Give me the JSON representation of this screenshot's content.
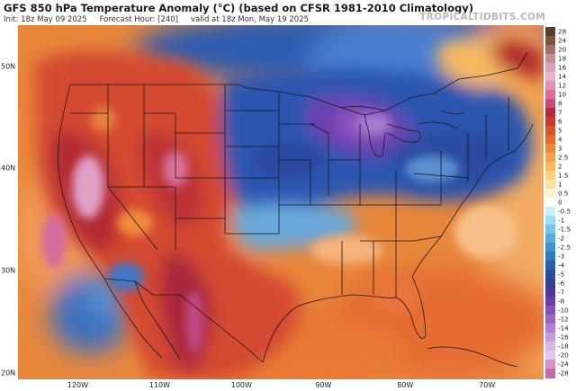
{
  "header": {
    "title": "GFS 850 hPa Temperature Anomaly (°C) (based on CFSR 1981-2010 Climatology)",
    "init": "Init: 18z May 09 2025",
    "forecast_hour": "Forecast Hour: [240]",
    "valid": "valid at 18z Mon, May 19 2025",
    "brand": "TROPICALTIDBITS.COM"
  },
  "axes": {
    "latitudes": [
      {
        "label": "50N",
        "lat": 50
      },
      {
        "label": "40N",
        "lat": 40
      },
      {
        "label": "30N",
        "lat": 30
      },
      {
        "label": "20N",
        "lat": 20
      }
    ],
    "longitudes": [
      {
        "label": "120W",
        "lon": -120
      },
      {
        "label": "110W",
        "lon": -110
      },
      {
        "label": "100W",
        "lon": -100
      },
      {
        "label": "90W",
        "lon": -90
      },
      {
        "label": "80W",
        "lon": -80
      },
      {
        "label": "70W",
        "lon": -70
      }
    ]
  },
  "colorbar": {
    "labels": [
      "28",
      "24",
      "20",
      "18",
      "16",
      "14",
      "12",
      "10",
      "8",
      "7",
      "6",
      "5",
      "4",
      "3",
      "2.5",
      "2",
      "1.5",
      "1",
      "0.5",
      "0",
      "-0.5",
      "-1",
      "-1.5",
      "-2",
      "-2.5",
      "-3",
      "-4",
      "-5",
      "-6",
      "-7",
      "-8",
      "-10",
      "-12",
      "-14",
      "-16",
      "-18",
      "-20",
      "-24",
      "-28"
    ],
    "colors": [
      "#5c3c2c",
      "#7d5540",
      "#a07060",
      "#c9909a",
      "#dca3bb",
      "#e7b3cc",
      "#e68fb4",
      "#d96c98",
      "#c94a72",
      "#b42a3e",
      "#c83a2f",
      "#d9522b",
      "#e56a2f",
      "#ef8838",
      "#f5a24a",
      "#f8b862",
      "#fbce80",
      "#fde2a3",
      "#fff3cf",
      "#ffffff",
      "#cfeef8",
      "#9edcf0",
      "#78c6e6",
      "#58acd9",
      "#4191c9",
      "#3378b8",
      "#2b61a6",
      "#2a4f98",
      "#363f91",
      "#4d3796",
      "#6a3ba4",
      "#8551b5",
      "#9c67c4",
      "#b37fd0",
      "#c69ada",
      "#d8b5e4",
      "#e3c6ea",
      "#d891c8",
      "#c26aab"
    ]
  },
  "map_layers": {
    "ocean_base": "#e8873c",
    "warm_core": "#b82a2a",
    "cold_core": "#2a55b0",
    "trough_center": "#7a3fb0",
    "boundary_color": "#1a1a1a"
  }
}
